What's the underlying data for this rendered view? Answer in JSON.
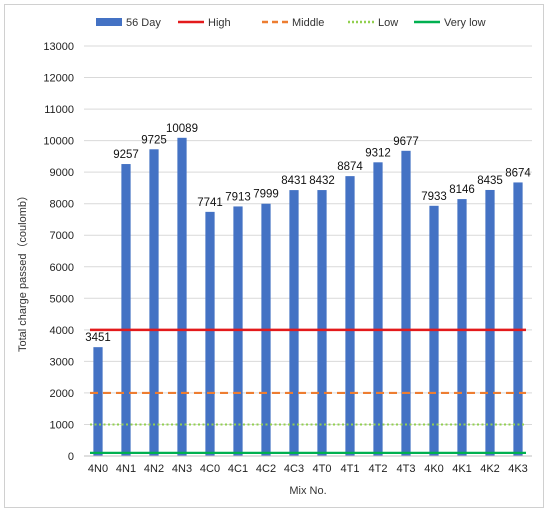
{
  "chart_data": {
    "type": "bar",
    "xlabel": "Mix No.",
    "ylabel": "Total charge passed（coulomb）",
    "ylim": [
      0,
      13000
    ],
    "yticks": [
      0,
      1000,
      2000,
      3000,
      4000,
      5000,
      6000,
      7000,
      8000,
      9000,
      10000,
      11000,
      12000,
      13000
    ],
    "grid": "horizontal",
    "legend_position": "top",
    "categories": [
      "4N0",
      "4N1",
      "4N2",
      "4N3",
      "4C0",
      "4C1",
      "4C2",
      "4C3",
      "4T0",
      "4T1",
      "4T2",
      "4T3",
      "4K0",
      "4K1",
      "4K2",
      "4K3"
    ],
    "series": [
      {
        "name": "56 Day",
        "type": "bar",
        "color": "#4472C4",
        "values": [
          3451,
          9257,
          9725,
          10089,
          7741,
          7913,
          7999,
          8431,
          8432,
          8874,
          9312,
          9677,
          7933,
          8146,
          8435,
          8674
        ]
      }
    ],
    "reference_lines": [
      {
        "name": "High",
        "value": 4000,
        "color": "#E31A1C",
        "style": "solid"
      },
      {
        "name": "Middle",
        "value": 2000,
        "color": "#ED7D31",
        "style": "dashed"
      },
      {
        "name": "Low",
        "value": 1000,
        "color": "#92D050",
        "style": "dotted"
      },
      {
        "name": "Very low",
        "value": 100,
        "color": "#00B050",
        "style": "solid"
      }
    ]
  }
}
